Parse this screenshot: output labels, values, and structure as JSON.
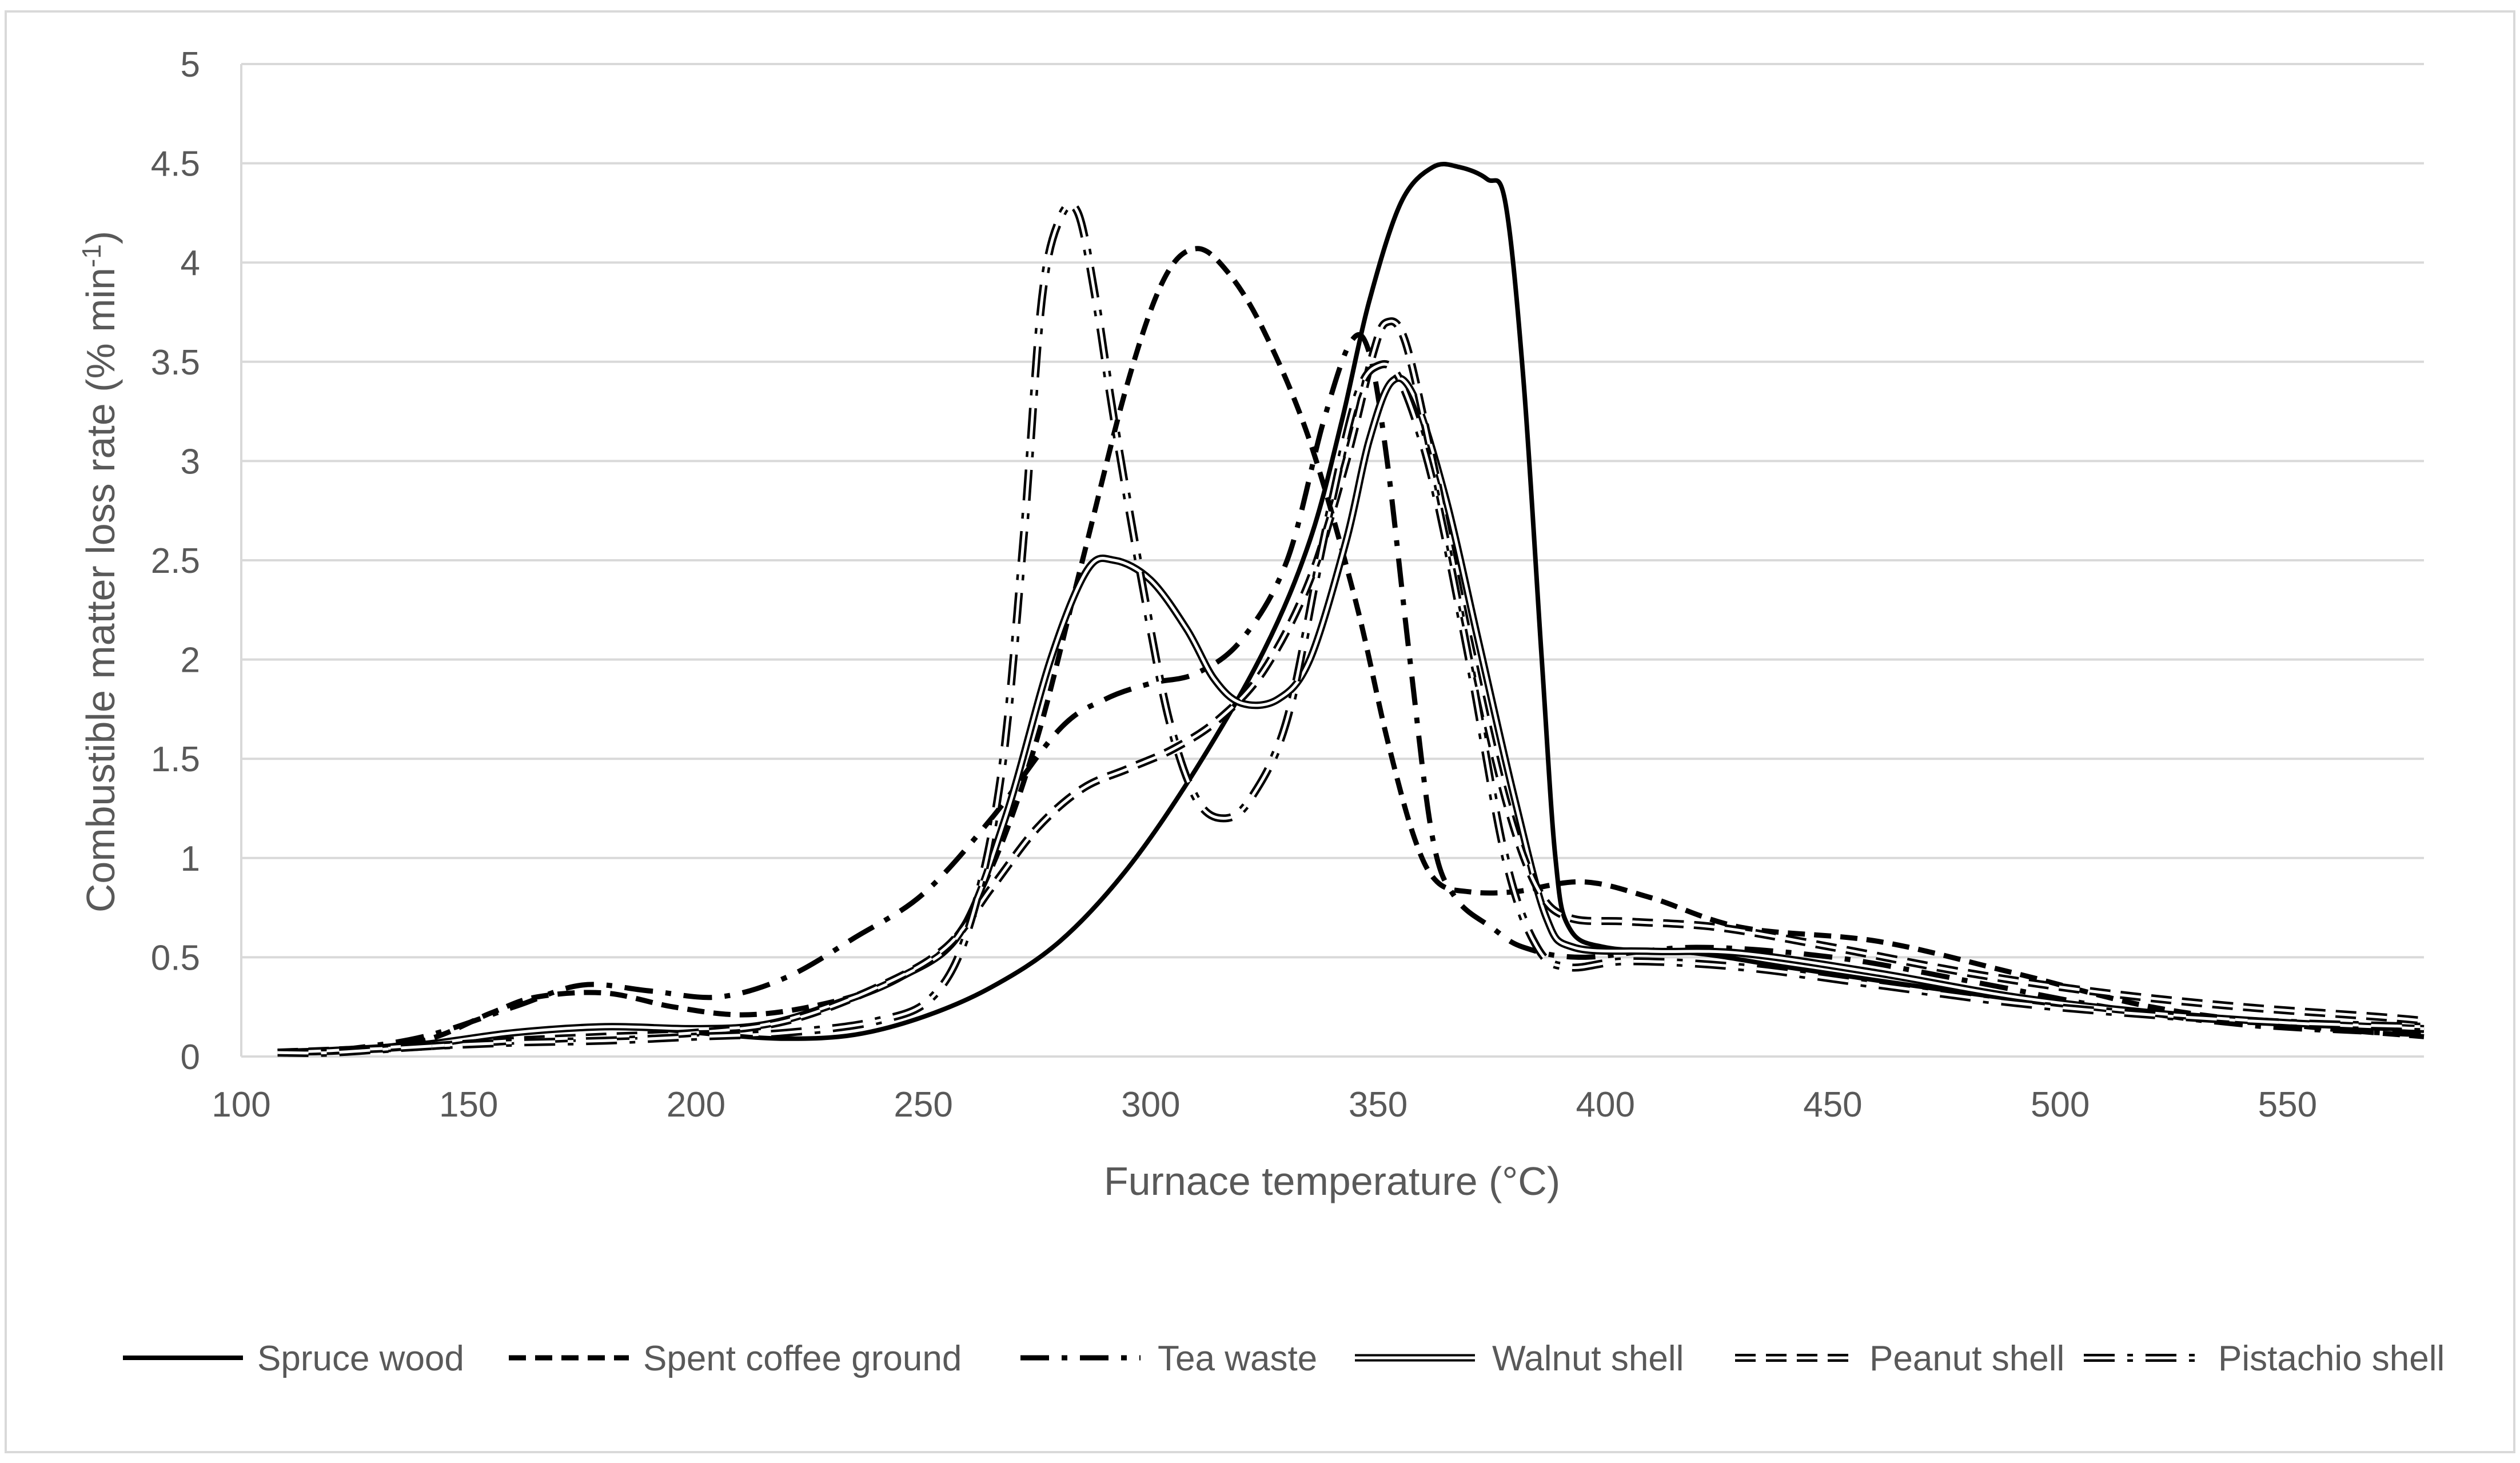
{
  "chart_data": {
    "type": "line",
    "title": "",
    "xlabel": "Furnace temperature (°C)",
    "ylabel": "Combustible matter loss rate (% min",
    "ylabel_sup": "-1",
    "ylabel_end": ")",
    "xlim": [
      100,
      580
    ],
    "ylim": [
      0,
      5
    ],
    "grid": "horizontal",
    "legend_position": "bottom",
    "x_ticks": [
      100,
      150,
      200,
      250,
      300,
      350,
      400,
      450,
      500,
      550
    ],
    "y_ticks": [
      0,
      0.5,
      1,
      1.5,
      2,
      2.5,
      3,
      3.5,
      4,
      4.5,
      5
    ],
    "x_tick_labels": [
      "100",
      "150",
      "200",
      "250",
      "300",
      "350",
      "400",
      "450",
      "500",
      "550"
    ],
    "y_tick_labels": [
      "0",
      "0.5",
      "1",
      "1.5",
      "2",
      "2.5",
      "3",
      "3.5",
      "4",
      "4.5",
      "5"
    ],
    "series": [
      {
        "name": "Spruce wood",
        "line_style": "solid",
        "points": [
          [
            108,
            0.02
          ],
          [
            120,
            0.02
          ],
          [
            140,
            0.05
          ],
          [
            160,
            0.12
          ],
          [
            175,
            0.15
          ],
          [
            190,
            0.14
          ],
          [
            205,
            0.11
          ],
          [
            220,
            0.09
          ],
          [
            235,
            0.11
          ],
          [
            250,
            0.2
          ],
          [
            265,
            0.35
          ],
          [
            280,
            0.58
          ],
          [
            295,
            0.95
          ],
          [
            310,
            1.45
          ],
          [
            325,
            2.05
          ],
          [
            335,
            2.6
          ],
          [
            342,
            3.2
          ],
          [
            348,
            3.8
          ],
          [
            355,
            4.3
          ],
          [
            362,
            4.48
          ],
          [
            368,
            4.48
          ],
          [
            374,
            4.42
          ],
          [
            378,
            4.3
          ],
          [
            382,
            3.4
          ],
          [
            386,
            2.0
          ],
          [
            389,
            1.0
          ],
          [
            392,
            0.65
          ],
          [
            400,
            0.55
          ],
          [
            420,
            0.52
          ],
          [
            440,
            0.45
          ],
          [
            470,
            0.35
          ],
          [
            500,
            0.26
          ],
          [
            530,
            0.2
          ],
          [
            560,
            0.16
          ],
          [
            580,
            0.13
          ]
        ]
      },
      {
        "name": "Spent coffee ground",
        "line_style": "dashed",
        "points": [
          [
            108,
            0.02
          ],
          [
            120,
            0.03
          ],
          [
            140,
            0.08
          ],
          [
            155,
            0.22
          ],
          [
            165,
            0.3
          ],
          [
            180,
            0.32
          ],
          [
            195,
            0.25
          ],
          [
            210,
            0.21
          ],
          [
            225,
            0.25
          ],
          [
            240,
            0.35
          ],
          [
            255,
            0.55
          ],
          [
            265,
            0.95
          ],
          [
            275,
            1.6
          ],
          [
            285,
            2.5
          ],
          [
            295,
            3.4
          ],
          [
            303,
            3.92
          ],
          [
            310,
            4.07
          ],
          [
            317,
            3.95
          ],
          [
            325,
            3.65
          ],
          [
            335,
            3.1
          ],
          [
            345,
            2.3
          ],
          [
            352,
            1.6
          ],
          [
            358,
            1.1
          ],
          [
            363,
            0.88
          ],
          [
            370,
            0.83
          ],
          [
            380,
            0.83
          ],
          [
            395,
            0.88
          ],
          [
            410,
            0.8
          ],
          [
            430,
            0.65
          ],
          [
            460,
            0.58
          ],
          [
            490,
            0.42
          ],
          [
            520,
            0.25
          ],
          [
            550,
            0.16
          ],
          [
            580,
            0.1
          ]
        ]
      },
      {
        "name": "Tea waste",
        "line_style": "dash-dot",
        "points": [
          [
            108,
            0.02
          ],
          [
            120,
            0.03
          ],
          [
            140,
            0.1
          ],
          [
            160,
            0.25
          ],
          [
            175,
            0.36
          ],
          [
            190,
            0.33
          ],
          [
            205,
            0.3
          ],
          [
            220,
            0.4
          ],
          [
            235,
            0.6
          ],
          [
            250,
            0.82
          ],
          [
            265,
            1.2
          ],
          [
            280,
            1.65
          ],
          [
            290,
            1.8
          ],
          [
            300,
            1.88
          ],
          [
            310,
            1.93
          ],
          [
            320,
            2.1
          ],
          [
            330,
            2.5
          ],
          [
            338,
            3.2
          ],
          [
            344,
            3.6
          ],
          [
            348,
            3.55
          ],
          [
            352,
            3.0
          ],
          [
            357,
            2.0
          ],
          [
            362,
            1.1
          ],
          [
            367,
            0.8
          ],
          [
            375,
            0.65
          ],
          [
            382,
            0.55
          ],
          [
            395,
            0.5
          ],
          [
            420,
            0.55
          ],
          [
            450,
            0.5
          ],
          [
            480,
            0.38
          ],
          [
            510,
            0.25
          ],
          [
            540,
            0.16
          ],
          [
            570,
            0.12
          ],
          [
            580,
            0.11
          ]
        ]
      },
      {
        "name": "Walnut shell",
        "line_style": "double",
        "points": [
          [
            108,
            0.02
          ],
          [
            120,
            0.03
          ],
          [
            140,
            0.06
          ],
          [
            160,
            0.12
          ],
          [
            180,
            0.15
          ],
          [
            200,
            0.14
          ],
          [
            215,
            0.16
          ],
          [
            230,
            0.26
          ],
          [
            245,
            0.4
          ],
          [
            258,
            0.62
          ],
          [
            268,
            1.2
          ],
          [
            278,
            2.0
          ],
          [
            286,
            2.45
          ],
          [
            292,
            2.5
          ],
          [
            300,
            2.4
          ],
          [
            308,
            2.15
          ],
          [
            314,
            1.9
          ],
          [
            320,
            1.78
          ],
          [
            328,
            1.8
          ],
          [
            335,
            2.0
          ],
          [
            343,
            2.6
          ],
          [
            348,
            3.1
          ],
          [
            353,
            3.4
          ],
          [
            358,
            3.32
          ],
          [
            365,
            2.8
          ],
          [
            372,
            2.1
          ],
          [
            380,
            1.3
          ],
          [
            387,
            0.7
          ],
          [
            393,
            0.55
          ],
          [
            410,
            0.53
          ],
          [
            430,
            0.52
          ],
          [
            460,
            0.42
          ],
          [
            490,
            0.3
          ],
          [
            520,
            0.22
          ],
          [
            550,
            0.17
          ],
          [
            580,
            0.14
          ]
        ]
      },
      {
        "name": "Peanut shell",
        "line_style": "double-dashed",
        "points": [
          [
            108,
            0.02
          ],
          [
            120,
            0.03
          ],
          [
            140,
            0.05
          ],
          [
            160,
            0.08
          ],
          [
            180,
            0.1
          ],
          [
            200,
            0.12
          ],
          [
            220,
            0.18
          ],
          [
            240,
            0.35
          ],
          [
            255,
            0.55
          ],
          [
            265,
            0.85
          ],
          [
            275,
            1.15
          ],
          [
            285,
            1.35
          ],
          [
            295,
            1.45
          ],
          [
            305,
            1.55
          ],
          [
            315,
            1.7
          ],
          [
            325,
            1.95
          ],
          [
            335,
            2.4
          ],
          [
            343,
            3.0
          ],
          [
            349,
            3.55
          ],
          [
            352,
            3.7
          ],
          [
            356,
            3.6
          ],
          [
            362,
            3.0
          ],
          [
            370,
            2.1
          ],
          [
            378,
            1.3
          ],
          [
            385,
            0.85
          ],
          [
            392,
            0.7
          ],
          [
            405,
            0.68
          ],
          [
            425,
            0.65
          ],
          [
            450,
            0.55
          ],
          [
            480,
            0.42
          ],
          [
            510,
            0.32
          ],
          [
            540,
            0.25
          ],
          [
            570,
            0.2
          ],
          [
            580,
            0.18
          ]
        ]
      },
      {
        "name": "Pistachio shell",
        "line_style": "double-dash-dot",
        "points": [
          [
            108,
            0.02
          ],
          [
            120,
            0.02
          ],
          [
            140,
            0.05
          ],
          [
            160,
            0.07
          ],
          [
            180,
            0.08
          ],
          [
            200,
            0.1
          ],
          [
            220,
            0.12
          ],
          [
            240,
            0.18
          ],
          [
            252,
            0.3
          ],
          [
            260,
            0.65
          ],
          [
            267,
            1.4
          ],
          [
            272,
            2.6
          ],
          [
            276,
            3.8
          ],
          [
            280,
            4.22
          ],
          [
            284,
            4.25
          ],
          [
            288,
            3.8
          ],
          [
            292,
            3.2
          ],
          [
            298,
            2.4
          ],
          [
            304,
            1.7
          ],
          [
            310,
            1.3
          ],
          [
            316,
            1.2
          ],
          [
            322,
            1.3
          ],
          [
            330,
            1.7
          ],
          [
            338,
            2.6
          ],
          [
            345,
            3.3
          ],
          [
            350,
            3.48
          ],
          [
            355,
            3.4
          ],
          [
            362,
            2.9
          ],
          [
            370,
            2.0
          ],
          [
            378,
            1.0
          ],
          [
            385,
            0.55
          ],
          [
            392,
            0.45
          ],
          [
            405,
            0.48
          ],
          [
            430,
            0.45
          ],
          [
            460,
            0.36
          ],
          [
            490,
            0.27
          ],
          [
            520,
            0.21
          ],
          [
            550,
            0.17
          ],
          [
            580,
            0.15
          ]
        ]
      }
    ]
  }
}
